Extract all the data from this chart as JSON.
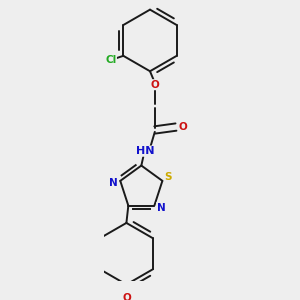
{
  "background_color": "#eeeeee",
  "bond_color": "#1a1a1a",
  "line_width": 1.4,
  "atom_colors": {
    "N": "#1111cc",
    "O": "#cc1111",
    "S": "#ccaa00",
    "Cl": "#22aa22"
  },
  "font_size": 7.5
}
